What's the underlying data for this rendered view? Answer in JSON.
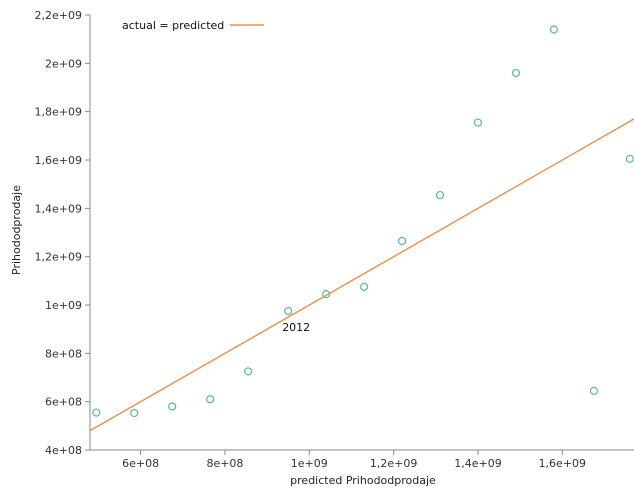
{
  "chart_data": {
    "type": "scatter",
    "title": "",
    "xlabel": "predicted Prihododprodaje",
    "ylabel": "Prihododprodaje",
    "xlim": [
      480000000,
      1770000000
    ],
    "ylim": [
      400000000,
      2200000000
    ],
    "x_ticks": [
      {
        "value": 600000000,
        "label": "6e+08"
      },
      {
        "value": 800000000,
        "label": "8e+08"
      },
      {
        "value": 1000000000,
        "label": "1e+09"
      },
      {
        "value": 1200000000,
        "label": "1,2e+09"
      },
      {
        "value": 1400000000,
        "label": "1,4e+09"
      },
      {
        "value": 1600000000,
        "label": "1,6e+09"
      }
    ],
    "y_ticks": [
      {
        "value": 400000000,
        "label": "4e+08"
      },
      {
        "value": 600000000,
        "label": "6e+08"
      },
      {
        "value": 800000000,
        "label": "8e+08"
      },
      {
        "value": 1000000000,
        "label": "1e+09"
      },
      {
        "value": 1200000000,
        "label": "1,2e+09"
      },
      {
        "value": 1400000000,
        "label": "1,4e+09"
      },
      {
        "value": 1600000000,
        "label": "1,6e+09"
      },
      {
        "value": 1800000000,
        "label": "1,8e+09"
      },
      {
        "value": 2000000000,
        "label": "2e+09"
      },
      {
        "value": 2200000000,
        "label": "2,2e+09"
      }
    ],
    "points": [
      {
        "x": 495000000,
        "y": 555000000
      },
      {
        "x": 585000000,
        "y": 553000000
      },
      {
        "x": 675000000,
        "y": 580000000
      },
      {
        "x": 765000000,
        "y": 610000000
      },
      {
        "x": 855000000,
        "y": 725000000
      },
      {
        "x": 950000000,
        "y": 975000000
      },
      {
        "x": 1040000000,
        "y": 1045000000
      },
      {
        "x": 1130000000,
        "y": 1075000000
      },
      {
        "x": 1220000000,
        "y": 1265000000
      },
      {
        "x": 1310000000,
        "y": 1455000000
      },
      {
        "x": 1400000000,
        "y": 1755000000
      },
      {
        "x": 1490000000,
        "y": 1960000000
      },
      {
        "x": 1580000000,
        "y": 2140000000
      },
      {
        "x": 1675000000,
        "y": 645000000
      },
      {
        "x": 1760000000,
        "y": 1605000000
      }
    ],
    "reference_line": {
      "name": "actual = predicted",
      "from": 480000000,
      "to": 1770000000
    },
    "annotations": [
      {
        "text": "2012",
        "x": 950000000,
        "y": 975000000
      }
    ],
    "legend": {
      "placement": "top-left",
      "label": "actual = predicted"
    },
    "grid": false,
    "colors": {
      "points": "#5ab89a",
      "line": "#e8904a",
      "axis": "#888888"
    }
  }
}
